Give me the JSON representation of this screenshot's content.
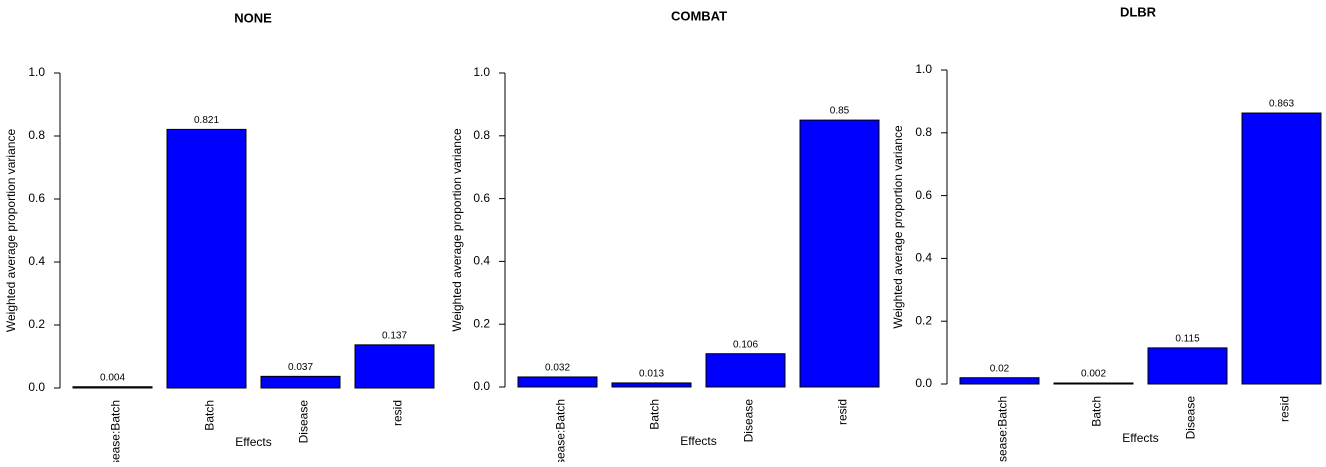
{
  "chart_data": [
    {
      "type": "bar",
      "title": "NONE",
      "xlabel": "Effects",
      "ylabel": "Weighted average proportion variance",
      "categories": [
        "Disease:Batch",
        "Batch",
        "Disease",
        "resid"
      ],
      "values": [
        0.004,
        0.821,
        0.037,
        0.137
      ],
      "value_labels": [
        "0.004",
        "0.821",
        "0.037",
        "0.137"
      ],
      "ylim": [
        0,
        1
      ],
      "yticks": [
        "0.0",
        "0.2",
        "0.4",
        "0.6",
        "0.8",
        "1.0"
      ],
      "grid": false,
      "bar_color": "#0000ff"
    },
    {
      "type": "bar",
      "title": "COMBAT",
      "xlabel": "Effects",
      "ylabel": "Weighted average proportion variance",
      "categories": [
        "Disease:Batch",
        "Batch",
        "Disease",
        "resid"
      ],
      "values": [
        0.032,
        0.013,
        0.106,
        0.85
      ],
      "value_labels": [
        "0.032",
        "0.013",
        "0.106",
        "0.85"
      ],
      "ylim": [
        0,
        1
      ],
      "yticks": [
        "0.0",
        "0.2",
        "0.4",
        "0.6",
        "0.8",
        "1.0"
      ],
      "grid": false,
      "bar_color": "#0000ff"
    },
    {
      "type": "bar",
      "title": "DLBR",
      "xlabel": "Effects",
      "ylabel": "Weighted average proportion variance",
      "categories": [
        "Disease:Batch",
        "Batch",
        "Disease",
        "resid"
      ],
      "values": [
        0.02,
        0.002,
        0.115,
        0.863
      ],
      "value_labels": [
        "0.02",
        "0.002",
        "0.115",
        "0.863"
      ],
      "ylim": [
        0,
        1
      ],
      "yticks": [
        "0.0",
        "0.2",
        "0.4",
        "0.6",
        "0.8",
        "1.0"
      ],
      "grid": false,
      "bar_color": "#0000ff"
    }
  ]
}
